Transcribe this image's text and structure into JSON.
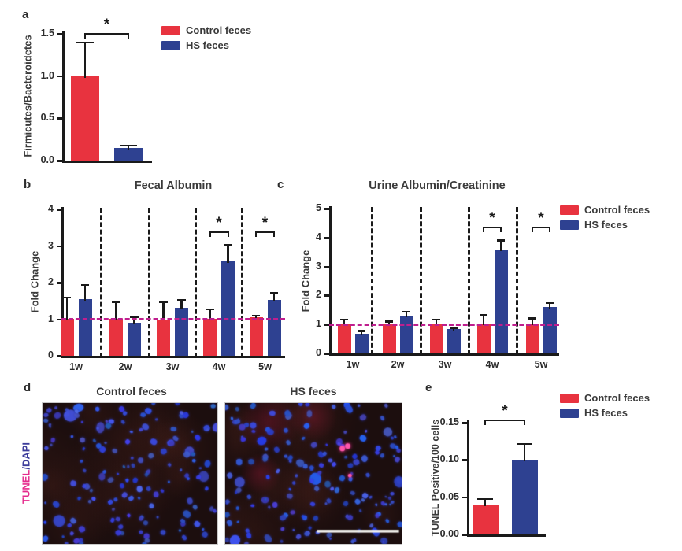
{
  "figure": {
    "panel_letters": {
      "a": "a",
      "b": "b",
      "c": "c",
      "d": "d",
      "e": "e"
    }
  },
  "colors": {
    "control_red": "#e8333f",
    "hs_blue": "#2e4191",
    "axis_black": "#1a1a1a",
    "text": "#3a3a3a",
    "baseline_magenta": "#bf1e8e",
    "tunel_pink": "#e52a8c",
    "dapi_blue": "#3c3c9a",
    "micro_bg": "#1c0e0e",
    "nuclei_blue": "#3a50c8",
    "tunel_spot_pink": "#ff57ab",
    "scale_bar_white": "#f2f2ee"
  },
  "legend": {
    "items": [
      {
        "key": "control_red",
        "label": "Control feces"
      },
      {
        "key": "hs_blue",
        "label": "HS feces"
      }
    ]
  },
  "chart_data": [
    {
      "id": "a",
      "type": "bar",
      "title": "",
      "ylabel": "Firmicutes/Bacteroidetes",
      "categories": [
        ""
      ],
      "yticks": [
        "0.0",
        "0.5",
        "1.0",
        "1.5"
      ],
      "ylim": [
        0,
        1.5
      ],
      "series": [
        {
          "name": "Control feces",
          "color_key": "control_red",
          "values": [
            1.0
          ],
          "errors": [
            0.4
          ]
        },
        {
          "name": "HS feces",
          "color_key": "hs_blue",
          "values": [
            0.15
          ],
          "errors": [
            0.03
          ]
        }
      ],
      "significance": [
        {
          "label": "*",
          "between": "Control feces vs HS feces"
        }
      ],
      "legend_position": "right"
    },
    {
      "id": "b",
      "type": "bar",
      "title": "Fecal Albumin",
      "ylabel": "Fold Change",
      "categories": [
        "1w",
        "2w",
        "3w",
        "4w",
        "5w"
      ],
      "yticks": [
        "0",
        "1",
        "2",
        "3",
        "4"
      ],
      "ylim": [
        0,
        4
      ],
      "baseline": 1,
      "grid": "dashed-group-separators",
      "series": [
        {
          "name": "Control feces",
          "color_key": "control_red",
          "values": [
            1.02,
            1.02,
            1.0,
            1.02,
            1.05
          ],
          "errors": [
            0.58,
            0.45,
            0.48,
            0.25,
            0.05
          ]
        },
        {
          "name": "HS feces",
          "color_key": "hs_blue",
          "values": [
            1.54,
            0.9,
            1.32,
            2.58,
            1.52
          ],
          "errors": [
            0.4,
            0.17,
            0.2,
            0.45,
            0.2
          ]
        }
      ],
      "significance": [
        {
          "label": "*",
          "group": "4w"
        },
        {
          "label": "*",
          "group": "5w"
        }
      ]
    },
    {
      "id": "c",
      "type": "bar",
      "title": "Urine Albumin/Creatinine",
      "ylabel": "Fold Change",
      "categories": [
        "1w",
        "2w",
        "3w",
        "4w",
        "5w"
      ],
      "yticks": [
        "0",
        "1",
        "2",
        "3",
        "4",
        "5"
      ],
      "ylim": [
        0,
        5
      ],
      "baseline": 1,
      "grid": "dashed-group-separators",
      "series": [
        {
          "name": "Control feces",
          "color_key": "control_red",
          "values": [
            1.03,
            1.03,
            1.0,
            1.03,
            1.03
          ],
          "errors": [
            0.15,
            0.08,
            0.18,
            0.3,
            0.18
          ]
        },
        {
          "name": "HS feces",
          "color_key": "hs_blue",
          "values": [
            0.68,
            1.3,
            0.84,
            3.6,
            1.6
          ],
          "errors": [
            0.1,
            0.15,
            0.04,
            0.3,
            0.15
          ]
        }
      ],
      "significance": [
        {
          "label": "*",
          "group": "4w"
        },
        {
          "label": "*",
          "group": "5w"
        }
      ],
      "legend_position": "right"
    },
    {
      "id": "e",
      "type": "bar",
      "title": "",
      "ylabel": "TUNEL Positive/100 cells",
      "categories": [
        ""
      ],
      "yticks": [
        "0.00",
        "0.05",
        "0.10",
        "0.15"
      ],
      "ylim": [
        0,
        0.15
      ],
      "series": [
        {
          "name": "Control feces",
          "color_key": "control_red",
          "values": [
            0.04
          ],
          "errors": [
            0.008
          ]
        },
        {
          "name": "HS feces",
          "color_key": "hs_blue",
          "values": [
            0.1
          ],
          "errors": [
            0.022
          ]
        }
      ],
      "significance": [
        {
          "label": "*",
          "between": "Control feces vs HS feces"
        }
      ],
      "legend_position": "right"
    }
  ],
  "microscopy": {
    "row_label_tunel": "TUNEL",
    "row_label_dapi": "/DAPI",
    "images": [
      {
        "title": "Control feces",
        "nuclei_count": 150,
        "tunel_spots": 0,
        "red_haze": false,
        "has_scale_bar": false
      },
      {
        "title": "HS feces",
        "nuclei_count": 165,
        "tunel_spots": 3,
        "red_haze": true,
        "has_scale_bar": true
      }
    ]
  }
}
